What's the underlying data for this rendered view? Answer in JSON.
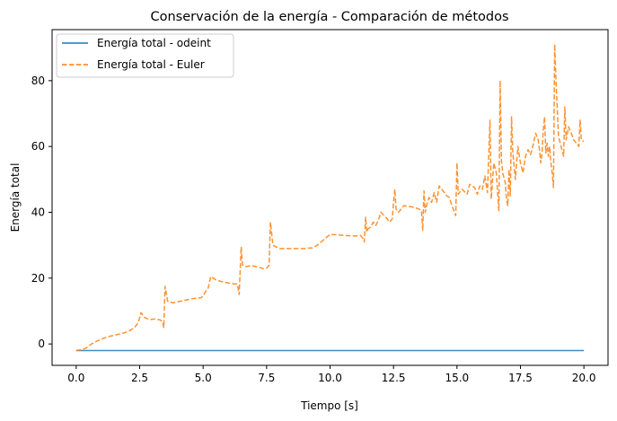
{
  "chart_data": {
    "type": "line",
    "title": "Conservación de la energía - Comparación de métodos",
    "xlabel": "Tiempo [s]",
    "ylabel": "Energía total",
    "xlim": [
      -0.95,
      20.95
    ],
    "ylim": [
      -6.5,
      95.5
    ],
    "x_ticks": [
      0.0,
      2.5,
      5.0,
      7.5,
      10.0,
      12.5,
      15.0,
      17.5,
      20.0
    ],
    "x_tick_labels": [
      "0.0",
      "2.5",
      "5.0",
      "7.5",
      "10.0",
      "12.5",
      "15.0",
      "17.5",
      "20.0"
    ],
    "y_ticks": [
      0,
      20,
      40,
      60,
      80
    ],
    "y_tick_labels": [
      "0",
      "20",
      "40",
      "60",
      "80"
    ],
    "grid": false,
    "legend_position": "top-left",
    "series": [
      {
        "name": "Energía total - odeint",
        "color": "#1f77b4",
        "style": "solid",
        "points": [
          [
            0.0,
            -2.0
          ],
          [
            20.0,
            -2.0
          ]
        ]
      },
      {
        "name": "Energía total - Euler",
        "color": "#ff7f0e",
        "style": "dashed",
        "points": [
          [
            0.0,
            -2.0
          ],
          [
            0.2,
            -1.8
          ],
          [
            0.4,
            -1.2
          ],
          [
            0.6,
            0.0
          ],
          [
            0.8,
            0.8
          ],
          [
            1.0,
            1.5
          ],
          [
            1.3,
            2.3
          ],
          [
            1.6,
            2.8
          ],
          [
            1.9,
            3.4
          ],
          [
            2.1,
            4.0
          ],
          [
            2.2,
            4.5
          ],
          [
            2.3,
            5.0
          ],
          [
            2.45,
            6.5
          ],
          [
            2.55,
            9.5
          ],
          [
            2.7,
            8.0
          ],
          [
            2.9,
            7.4
          ],
          [
            3.1,
            7.6
          ],
          [
            3.3,
            7.3
          ],
          [
            3.4,
            6.8
          ],
          [
            3.45,
            5.0
          ],
          [
            3.5,
            17.5
          ],
          [
            3.6,
            13.0
          ],
          [
            3.8,
            12.5
          ],
          [
            4.0,
            12.8
          ],
          [
            4.3,
            13.3
          ],
          [
            4.6,
            13.8
          ],
          [
            4.9,
            14.0
          ],
          [
            5.0,
            14.5
          ],
          [
            5.1,
            16.0
          ],
          [
            5.2,
            17.0
          ],
          [
            5.3,
            20.5
          ],
          [
            5.5,
            19.5
          ],
          [
            5.7,
            19.0
          ],
          [
            6.0,
            18.5
          ],
          [
            6.2,
            18.3
          ],
          [
            6.35,
            18.2
          ],
          [
            6.42,
            15.0
          ],
          [
            6.5,
            29.5
          ],
          [
            6.55,
            24.0
          ],
          [
            6.7,
            23.5
          ],
          [
            6.9,
            23.8
          ],
          [
            7.2,
            23.3
          ],
          [
            7.4,
            22.8
          ],
          [
            7.5,
            23.0
          ],
          [
            7.55,
            23.5
          ],
          [
            7.6,
            24.0
          ],
          [
            7.65,
            37.0
          ],
          [
            7.75,
            30.0
          ],
          [
            8.0,
            29.0
          ],
          [
            8.5,
            29.0
          ],
          [
            9.0,
            29.0
          ],
          [
            9.3,
            29.2
          ],
          [
            9.5,
            30.0
          ],
          [
            9.8,
            32.0
          ],
          [
            10.0,
            33.3
          ],
          [
            10.5,
            33.0
          ],
          [
            11.0,
            32.8
          ],
          [
            11.2,
            33.0
          ],
          [
            11.3,
            32.0
          ],
          [
            11.35,
            31.0
          ],
          [
            11.4,
            38.5
          ],
          [
            11.45,
            34.0
          ],
          [
            11.5,
            35.0
          ],
          [
            11.6,
            35.5
          ],
          [
            11.7,
            37.0
          ],
          [
            11.8,
            36.0
          ],
          [
            11.9,
            37.5
          ],
          [
            12.0,
            40.0
          ],
          [
            12.2,
            38.5
          ],
          [
            12.35,
            37.0
          ],
          [
            12.45,
            38.0
          ],
          [
            12.5,
            43.0
          ],
          [
            12.55,
            47.0
          ],
          [
            12.6,
            41.0
          ],
          [
            12.7,
            40.0
          ],
          [
            12.9,
            42.0
          ],
          [
            13.1,
            41.8
          ],
          [
            13.3,
            41.5
          ],
          [
            13.5,
            41.0
          ],
          [
            13.6,
            40.5
          ],
          [
            13.65,
            34.5
          ],
          [
            13.7,
            46.5
          ],
          [
            13.75,
            40.0
          ],
          [
            13.8,
            42.0
          ],
          [
            13.9,
            44.5
          ],
          [
            14.0,
            43.0
          ],
          [
            14.1,
            46.0
          ],
          [
            14.2,
            43.0
          ],
          [
            14.3,
            48.0
          ],
          [
            14.45,
            46.5
          ],
          [
            14.6,
            45.0
          ],
          [
            14.7,
            44.5
          ],
          [
            14.8,
            42.0
          ],
          [
            14.9,
            40.0
          ],
          [
            14.95,
            39.0
          ],
          [
            15.0,
            55.0
          ],
          [
            15.05,
            45.5
          ],
          [
            15.2,
            47.0
          ],
          [
            15.4,
            45.5
          ],
          [
            15.5,
            48.5
          ],
          [
            15.7,
            47.5
          ],
          [
            15.8,
            45.5
          ],
          [
            15.9,
            48.0
          ],
          [
            16.0,
            47.0
          ],
          [
            16.1,
            51.0
          ],
          [
            16.2,
            46.0
          ],
          [
            16.3,
            68.0
          ],
          [
            16.35,
            44.0
          ],
          [
            16.45,
            55.0
          ],
          [
            16.55,
            52.0
          ],
          [
            16.6,
            46.0
          ],
          [
            16.65,
            40.5
          ],
          [
            16.7,
            80.0
          ],
          [
            16.75,
            56.0
          ],
          [
            16.8,
            52.0
          ],
          [
            16.9,
            49.0
          ],
          [
            16.95,
            44.0
          ],
          [
            17.0,
            42.0
          ],
          [
            17.05,
            53.0
          ],
          [
            17.1,
            45.0
          ],
          [
            17.15,
            69.0
          ],
          [
            17.2,
            58.0
          ],
          [
            17.3,
            50.0
          ],
          [
            17.4,
            60.0
          ],
          [
            17.5,
            55.0
          ],
          [
            17.6,
            52.0
          ],
          [
            17.7,
            57.0
          ],
          [
            17.8,
            59.0
          ],
          [
            17.9,
            57.5
          ],
          [
            18.0,
            60.5
          ],
          [
            18.1,
            64.0
          ],
          [
            18.2,
            62.0
          ],
          [
            18.25,
            59.0
          ],
          [
            18.3,
            55.0
          ],
          [
            18.35,
            58.0
          ],
          [
            18.4,
            65.0
          ],
          [
            18.45,
            69.0
          ],
          [
            18.5,
            58.0
          ],
          [
            18.55,
            61.0
          ],
          [
            18.6,
            57.0
          ],
          [
            18.65,
            60.0
          ],
          [
            18.7,
            55.0
          ],
          [
            18.75,
            52.0
          ],
          [
            18.8,
            47.5
          ],
          [
            18.85,
            91.0
          ],
          [
            18.9,
            80.0
          ],
          [
            19.0,
            63.0
          ],
          [
            19.1,
            60.0
          ],
          [
            19.2,
            57.0
          ],
          [
            19.25,
            72.0
          ],
          [
            19.3,
            62.0
          ],
          [
            19.4,
            66.0
          ],
          [
            19.5,
            64.0
          ],
          [
            19.6,
            62.0
          ],
          [
            19.7,
            61.0
          ],
          [
            19.8,
            60.0
          ],
          [
            19.85,
            68.0
          ],
          [
            19.9,
            62.0
          ],
          [
            20.0,
            61.5
          ]
        ]
      }
    ]
  }
}
